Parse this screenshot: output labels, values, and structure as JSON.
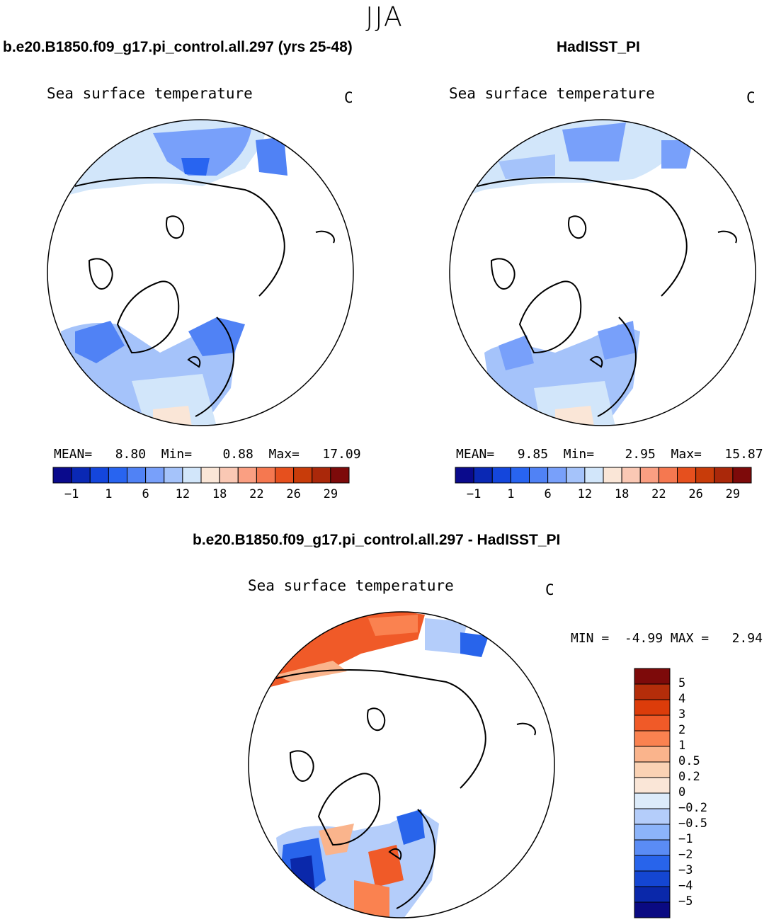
{
  "season": "JJA",
  "panels": [
    {
      "case_title": "b.e20.B1850.f09_g17.pi_control.all.297 (yrs 25-48)",
      "variable": "Sea surface temperature",
      "units": "C",
      "stats": {
        "mean_label": "MEAN=",
        "mean": "8.80",
        "min_label": "Min=",
        "min": "0.88",
        "max_label": "Max=",
        "max": "17.09"
      }
    },
    {
      "case_title": "HadISST_PI",
      "variable": "Sea surface temperature",
      "units": "C",
      "stats": {
        "mean_label": "MEAN=",
        "mean": "9.85",
        "min_label": "Min=",
        "min": "2.95",
        "max_label": "Max=",
        "max": "15.87"
      }
    }
  ],
  "diff_panel": {
    "case_title": "b.e20.B1850.f09_g17.pi_control.all.297 - HadISST_PI",
    "variable": "Sea surface temperature",
    "units": "C",
    "stats": {
      "min_label": "MIN =",
      "min": "-4.99",
      "max_label": "MAX =",
      "max": "2.94"
    }
  },
  "colorbar_abs": {
    "colors": [
      "#0a0a8c",
      "#0a28b4",
      "#1446dc",
      "#2864f0",
      "#5082f5",
      "#78a0fa",
      "#a5c3fa",
      "#d2e6fa",
      "#fae6d7",
      "#fac8b4",
      "#fa9f82",
      "#f57850",
      "#e6501e",
      "#c83c0a",
      "#aa280a",
      "#7d0a0a"
    ],
    "labels": [
      "−1",
      "1",
      "6",
      "12",
      "18",
      "22",
      "26",
      "29"
    ]
  },
  "colorbar_diff": {
    "colors": [
      "#7d0a0a",
      "#b42d0a",
      "#dc3c0a",
      "#f05a28",
      "#fa8250",
      "#fab48c",
      "#fad2b4",
      "#fae6d7",
      "#dcebfa",
      "#b4cdfa",
      "#8cb4fa",
      "#5a8cf5",
      "#2864eb",
      "#1446d2",
      "#0a28aa",
      "#0a0a82"
    ],
    "labels": [
      "5",
      "4",
      "3",
      "2",
      "1",
      "0.5",
      "0.2",
      "0",
      "−0.2",
      "−0.5",
      "−1",
      "−2",
      "−3",
      "−4",
      "−5"
    ]
  }
}
